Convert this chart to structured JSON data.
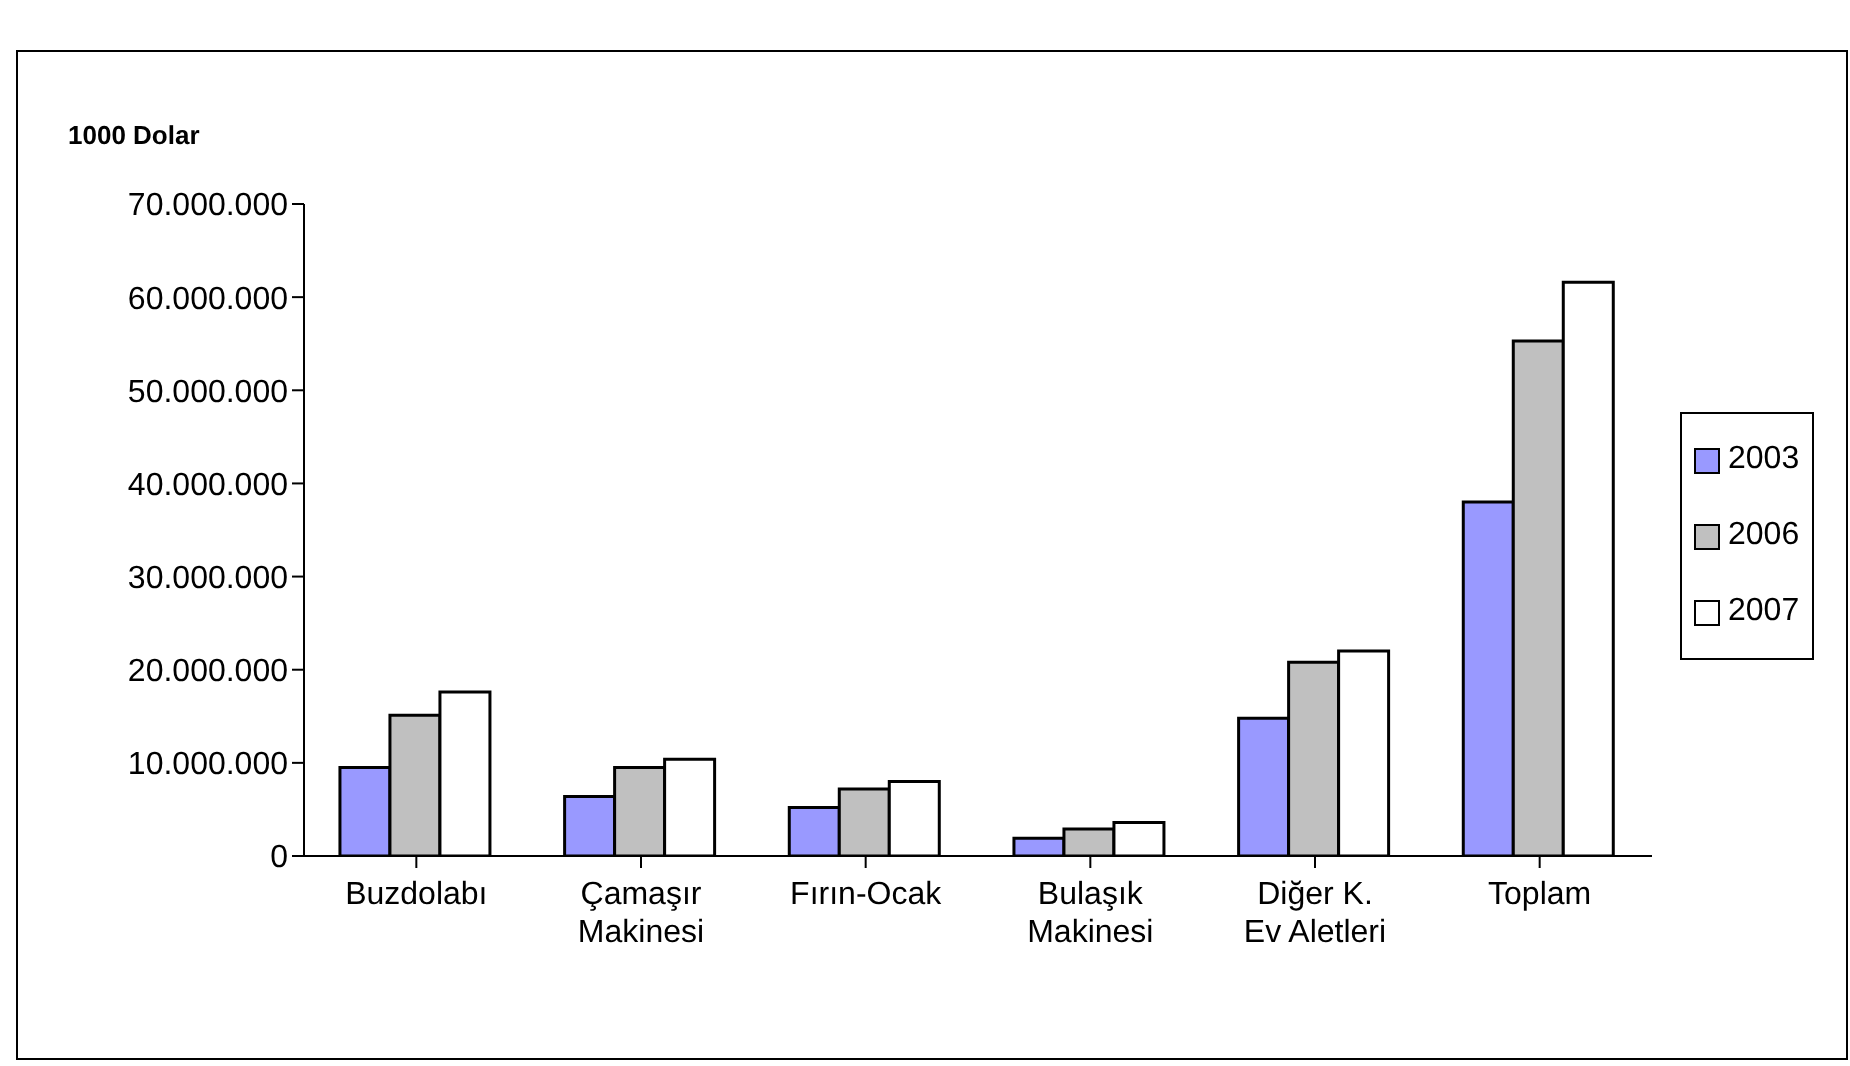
{
  "chart_data": {
    "type": "bar",
    "ylabel": "1000 Dolar",
    "categories": [
      "Buzdolabı",
      "Çamaşır\nMakinesi",
      "Fırın-Ocak",
      "Bulaşık\nMakinesi",
      "Diğer K.\nEv Aletleri",
      "Toplam"
    ],
    "series": [
      {
        "name": "2003",
        "color": "#9999ff",
        "values": [
          9500000,
          6400000,
          5200000,
          1900000,
          14800000,
          38000000
        ]
      },
      {
        "name": "2006",
        "color": "#c0c0c0",
        "values": [
          15100000,
          9500000,
          7200000,
          2900000,
          20800000,
          55300000
        ]
      },
      {
        "name": "2007",
        "color": "#ffffff",
        "values": [
          17600000,
          10400000,
          8000000,
          3600000,
          22000000,
          61600000
        ]
      }
    ],
    "ylim": [
      0,
      70000000
    ],
    "yticks": [
      0,
      {
        "value": 10000000,
        "label": "10.000.000"
      },
      {
        "value": 20000000,
        "label": "20.000.000"
      },
      {
        "value": 30000000,
        "label": "30.000.000"
      },
      {
        "value": 40000000,
        "label": "40.000.000"
      },
      {
        "value": 50000000,
        "label": "50.000.000"
      },
      {
        "value": 60000000,
        "label": "60.000.000"
      },
      {
        "value": 70000000,
        "label": "70.000.000"
      }
    ],
    "grid": false,
    "legend": "right"
  }
}
